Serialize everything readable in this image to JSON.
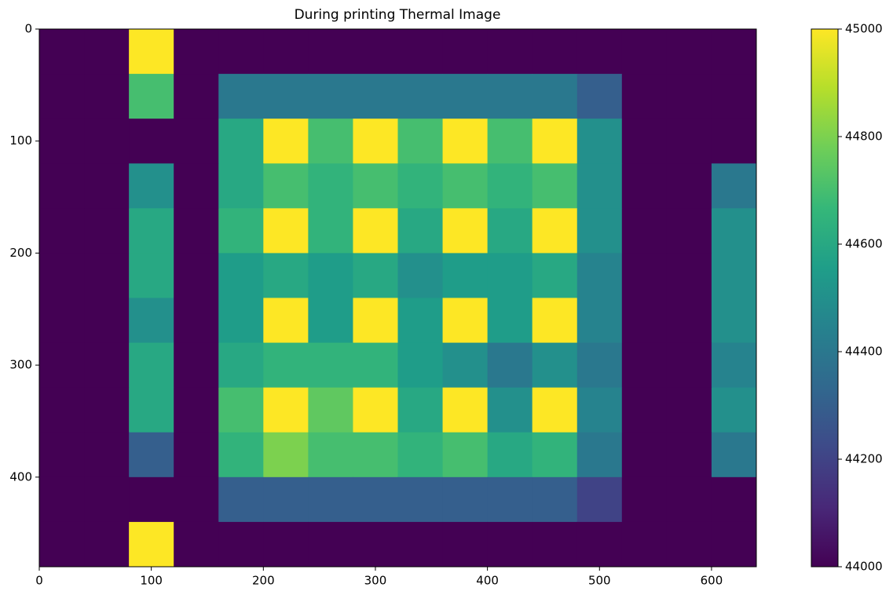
{
  "chart_data": {
    "type": "image",
    "title": "During printing Thermal Image",
    "xlim": [
      0,
      640
    ],
    "ylim": [
      480,
      0
    ],
    "xticks": [
      0,
      100,
      200,
      300,
      400,
      500,
      600
    ],
    "yticks": [
      0,
      100,
      200,
      300,
      400
    ],
    "cmap": "viridis",
    "clim": [
      44000,
      45000
    ],
    "colorbar_ticks": [
      44000,
      44200,
      44400,
      44600,
      44800,
      45000
    ],
    "z": [
      [
        44000,
        44000,
        45000,
        44000,
        44000,
        44000,
        44000,
        44000,
        44000,
        44000,
        44000,
        44000,
        44000,
        44000,
        44000,
        44000
      ],
      [
        44000,
        44000,
        44700,
        44000,
        44400,
        44400,
        44400,
        44400,
        44400,
        44400,
        44400,
        44400,
        44300,
        44000,
        44000,
        44000
      ],
      [
        44000,
        44000,
        44000,
        44000,
        44600,
        45000,
        44700,
        45000,
        44700,
        45000,
        44700,
        45000,
        44500,
        44000,
        44000,
        44000
      ],
      [
        44000,
        44000,
        44500,
        44000,
        44600,
        44700,
        44650,
        44700,
        44650,
        44700,
        44650,
        44700,
        44500,
        44000,
        44000,
        44400
      ],
      [
        44000,
        44000,
        44600,
        44000,
        44650,
        45000,
        44650,
        45000,
        44600,
        45000,
        44600,
        45000,
        44500,
        44000,
        44000,
        44500
      ],
      [
        44000,
        44000,
        44600,
        44000,
        44550,
        44600,
        44550,
        44600,
        44500,
        44550,
        44550,
        44600,
        44450,
        44000,
        44000,
        44500
      ],
      [
        44000,
        44000,
        44500,
        44000,
        44550,
        45000,
        44550,
        45000,
        44550,
        45000,
        44550,
        45000,
        44450,
        44000,
        44000,
        44500
      ],
      [
        44000,
        44000,
        44600,
        44000,
        44600,
        44650,
        44650,
        44650,
        44550,
        44500,
        44400,
        44500,
        44400,
        44000,
        44000,
        44450
      ],
      [
        44000,
        44000,
        44600,
        44000,
        44700,
        45000,
        44750,
        45000,
        44600,
        45000,
        44500,
        45000,
        44450,
        44000,
        44000,
        44500
      ],
      [
        44000,
        44000,
        44300,
        44000,
        44650,
        44800,
        44700,
        44700,
        44650,
        44700,
        44600,
        44650,
        44400,
        44000,
        44000,
        44400
      ],
      [
        44000,
        44000,
        44000,
        44000,
        44300,
        44300,
        44300,
        44300,
        44300,
        44300,
        44300,
        44300,
        44200,
        44000,
        44000,
        44000
      ],
      [
        44000,
        44000,
        45000,
        44000,
        44000,
        44000,
        44000,
        44000,
        44000,
        44000,
        44000,
        44000,
        44000,
        44000,
        44000,
        44000
      ]
    ]
  }
}
